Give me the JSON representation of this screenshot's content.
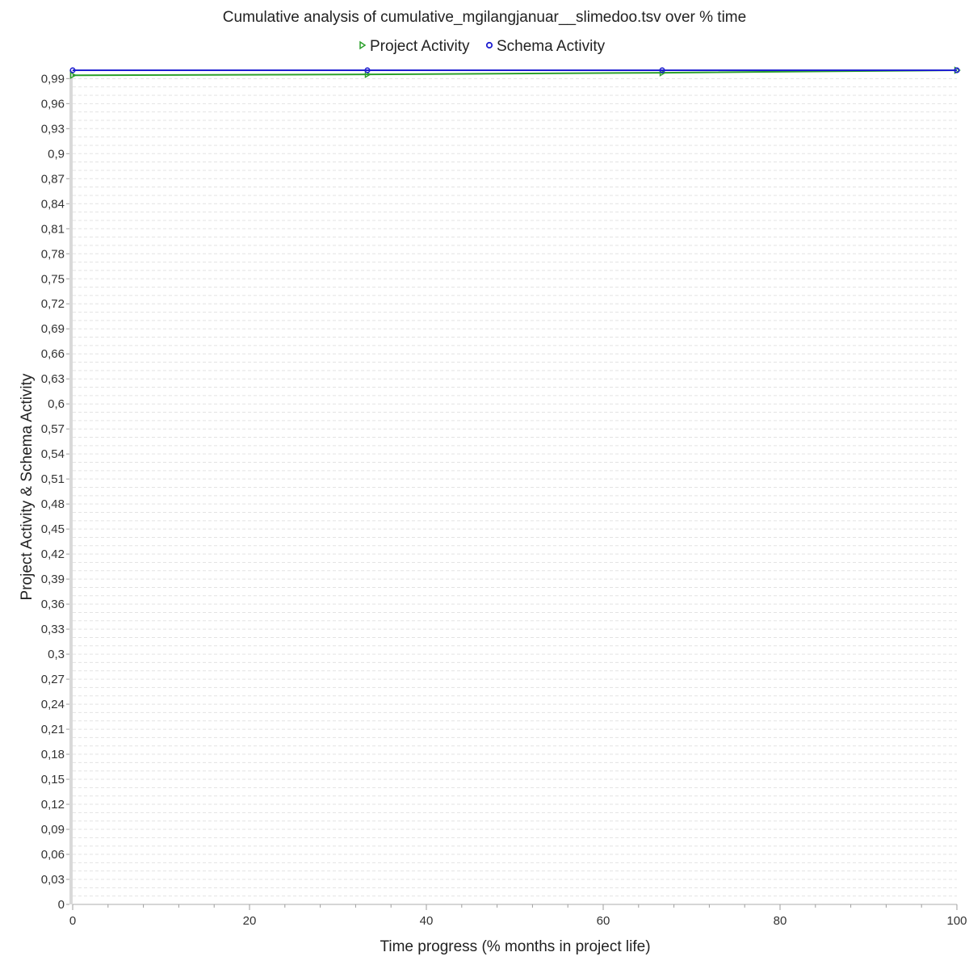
{
  "chart_data": {
    "type": "line",
    "title": "Cumulative analysis of cumulative_mgilangjanuar__slimedoo.tsv over % time",
    "xlabel": "Time progress (% months in project life)",
    "ylabel": "Project Activity & Schema Activity",
    "xlim": [
      0,
      100
    ],
    "ylim": [
      0,
      1.0
    ],
    "x_ticks": [
      0,
      20,
      40,
      60,
      80,
      100
    ],
    "x_tick_labels": [
      "0",
      "20",
      "40",
      "60",
      "80",
      "100"
    ],
    "y_ticks": [
      0,
      0.03,
      0.06,
      0.09,
      0.12,
      0.15,
      0.18,
      0.21,
      0.24,
      0.27,
      0.3,
      0.33,
      0.36,
      0.39,
      0.42,
      0.45,
      0.48,
      0.51,
      0.54,
      0.57,
      0.6,
      0.63,
      0.66,
      0.69,
      0.72,
      0.75,
      0.78,
      0.81,
      0.84,
      0.87,
      0.9,
      0.93,
      0.96,
      0.99
    ],
    "y_tick_labels": [
      "0",
      "0,03",
      "0,06",
      "0,09",
      "0,12",
      "0,15",
      "0,18",
      "0,21",
      "0,24",
      "0,27",
      "0,3",
      "0,33",
      "0,36",
      "0,39",
      "0,42",
      "0,45",
      "0,48",
      "0,51",
      "0,54",
      "0,57",
      "0,6",
      "0,63",
      "0,66",
      "0,69",
      "0,72",
      "0,75",
      "0,78",
      "0,81",
      "0,84",
      "0,87",
      "0,9",
      "0,93",
      "0,96",
      "0,99"
    ],
    "grid": true,
    "legend_position": "top-center",
    "reference_line": {
      "y": 1.0,
      "style": "dashed",
      "color": "#000000"
    },
    "series": [
      {
        "name": "Project Activity",
        "color": "#2ca02c",
        "marker": "triangle-right",
        "x": [
          0,
          33.33,
          66.67,
          100
        ],
        "y": [
          0.994,
          0.995,
          0.997,
          1.0
        ]
      },
      {
        "name": "Schema Activity",
        "color": "#1f1fd0",
        "marker": "circle",
        "x": [
          0,
          33.33,
          66.67,
          100
        ],
        "y": [
          1.0,
          1.0,
          1.0,
          1.0
        ]
      }
    ]
  }
}
